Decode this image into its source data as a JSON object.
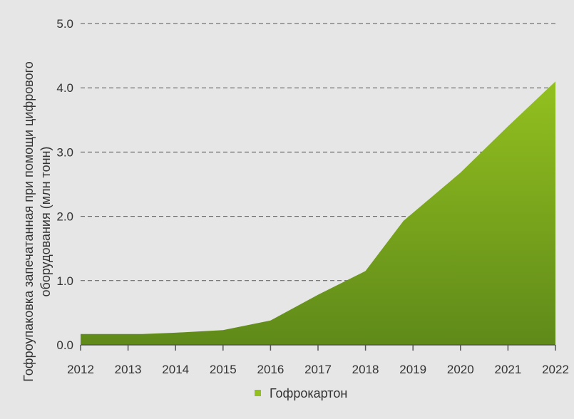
{
  "chart_data": {
    "type": "area",
    "title": "",
    "xlabel": "",
    "ylabel_lines": [
      "Гофроупаковка запечатанная при помощи цифрового",
      "оборудования (млн тонн)"
    ],
    "x": [
      "2012",
      "2013",
      "2014",
      "2015",
      "2016",
      "2017",
      "2018",
      "2019",
      "2020",
      "2021",
      "2022"
    ],
    "x_numeric": [
      2012,
      2013.3,
      2014,
      2015,
      2016,
      2017,
      2018,
      2018.8,
      2020,
      2021,
      2022
    ],
    "series": [
      {
        "name": "Гофрокартон",
        "values": [
          0.17,
          0.17,
          0.19,
          0.23,
          0.38,
          0.78,
          1.15,
          1.93,
          2.68,
          3.4,
          4.1
        ],
        "color_top": "#93c01f",
        "color_bottom": "#5f8a1a"
      }
    ],
    "ylim": [
      0,
      5
    ],
    "yticks": [
      "0.0",
      "1.0",
      "2.0",
      "3.0",
      "4.0",
      "5.0"
    ],
    "ytick_values": [
      0,
      1,
      2,
      3,
      4,
      5
    ],
    "grid": true,
    "legend_position": "bottom-center"
  }
}
